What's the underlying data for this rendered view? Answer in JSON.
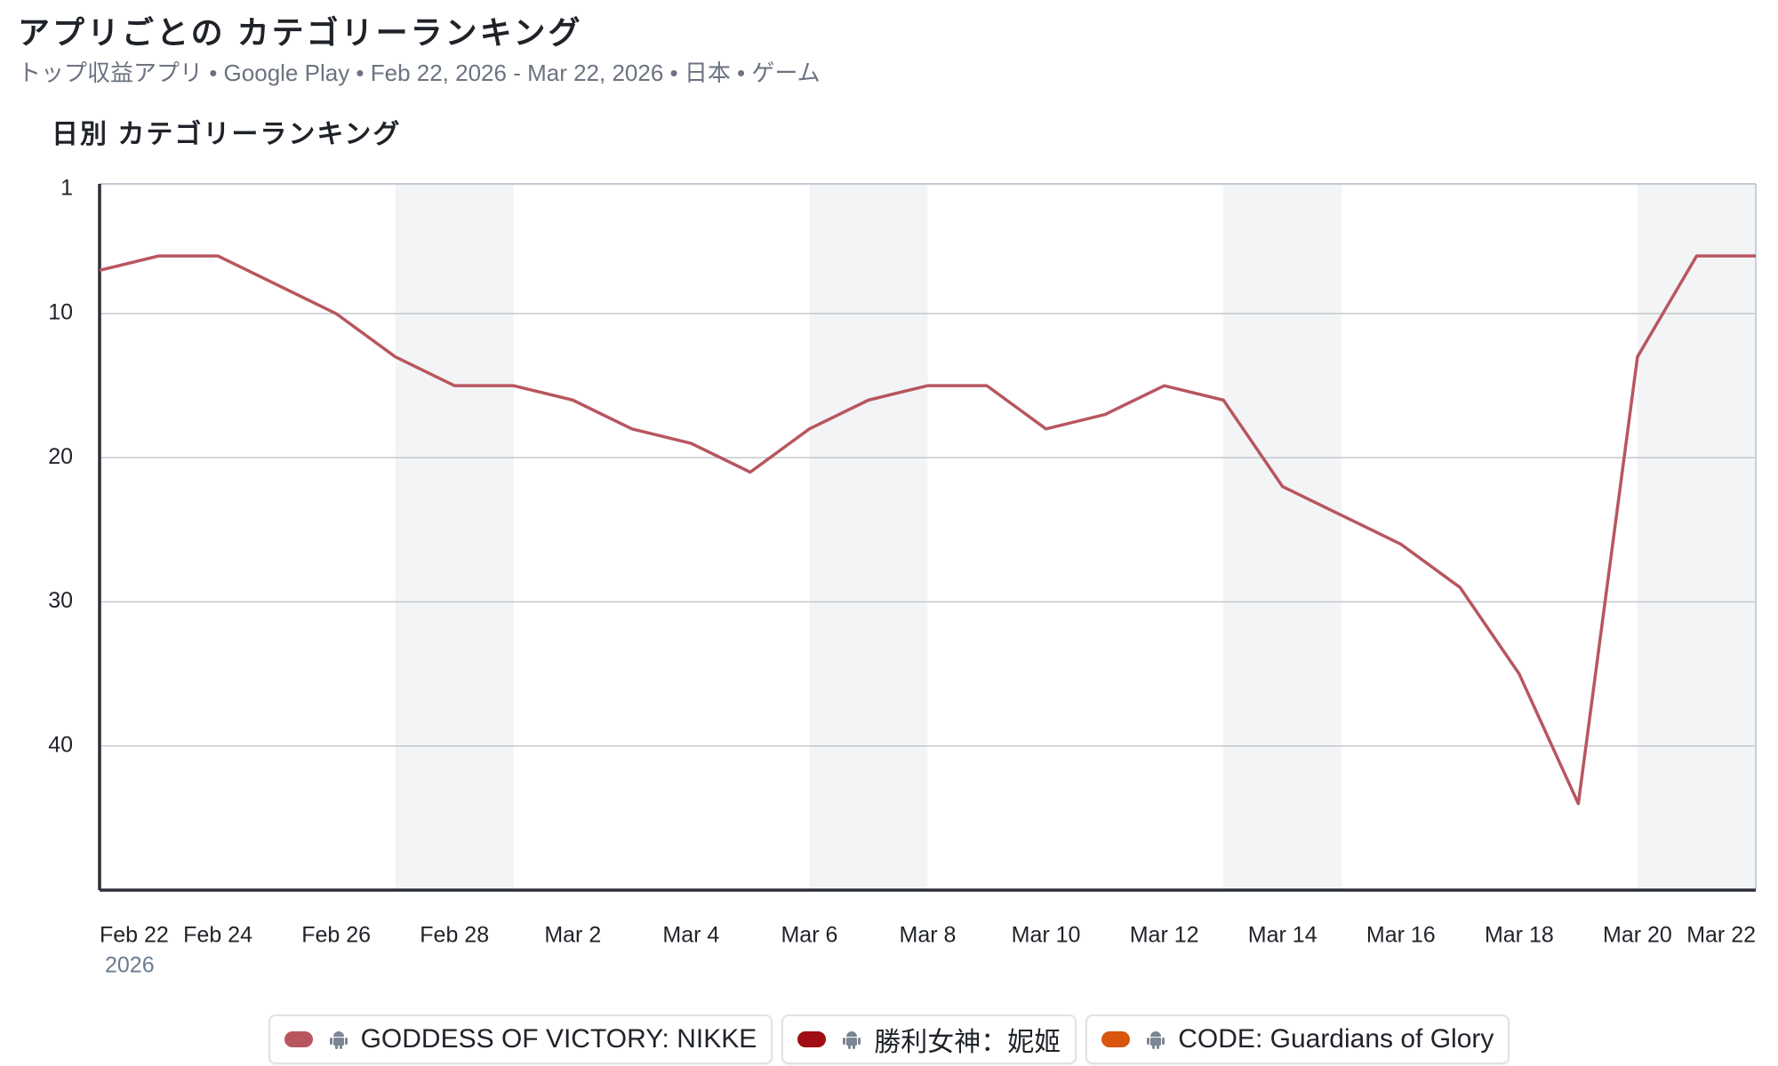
{
  "chart_data": {
    "type": "line",
    "title": "アプリごとの カテゴリーランキング",
    "subtitle": "トップ収益アプリ • Google Play • Feb 22, 2026 - Mar 22, 2026 • 日本 • ゲーム",
    "chart_title": "日別 カテゴリーランキング",
    "categories": [
      "Feb 22",
      null,
      "Feb 24",
      null,
      "Feb 26",
      null,
      "Feb 28",
      null,
      "Mar 2",
      null,
      "Mar 4",
      null,
      "Mar 6",
      null,
      "Mar 8",
      null,
      "Mar 10",
      null,
      "Mar 12",
      null,
      "Mar 14",
      null,
      "Mar 16",
      null,
      "Mar 18",
      null,
      "Mar 20",
      null,
      "Mar 22"
    ],
    "x_year_label": "2026",
    "series": [
      {
        "name": "GODDESS OF VICTORY: NIKKE",
        "color": "#b85660",
        "values": [
          7,
          6,
          6,
          8,
          10,
          13,
          15,
          15,
          16,
          18,
          19,
          21,
          18,
          16,
          15,
          15,
          18,
          17,
          15,
          16,
          22,
          24,
          26,
          29,
          35,
          44,
          13,
          6,
          6
        ]
      },
      {
        "name": "勝利女神：妮姬",
        "color": "#a00d14",
        "values": [
          null,
          null,
          null,
          null,
          null,
          null,
          null,
          null,
          null,
          null,
          null,
          null,
          null,
          null,
          null,
          null,
          null,
          null,
          null,
          null,
          null,
          null,
          null,
          null,
          null,
          null,
          null,
          null,
          null
        ]
      },
      {
        "name": "CODE: Guardians of Glory",
        "color": "#d9560f",
        "values": [
          null,
          null,
          null,
          null,
          null,
          null,
          null,
          null,
          null,
          null,
          null,
          null,
          null,
          null,
          null,
          null,
          null,
          null,
          null,
          null,
          null,
          null,
          null,
          null,
          null,
          null,
          null,
          null,
          null
        ]
      }
    ],
    "ylim": [
      1,
      50
    ],
    "yticks": [
      1,
      10,
      20,
      30,
      40
    ],
    "y_inverted": true,
    "grid": true
  }
}
